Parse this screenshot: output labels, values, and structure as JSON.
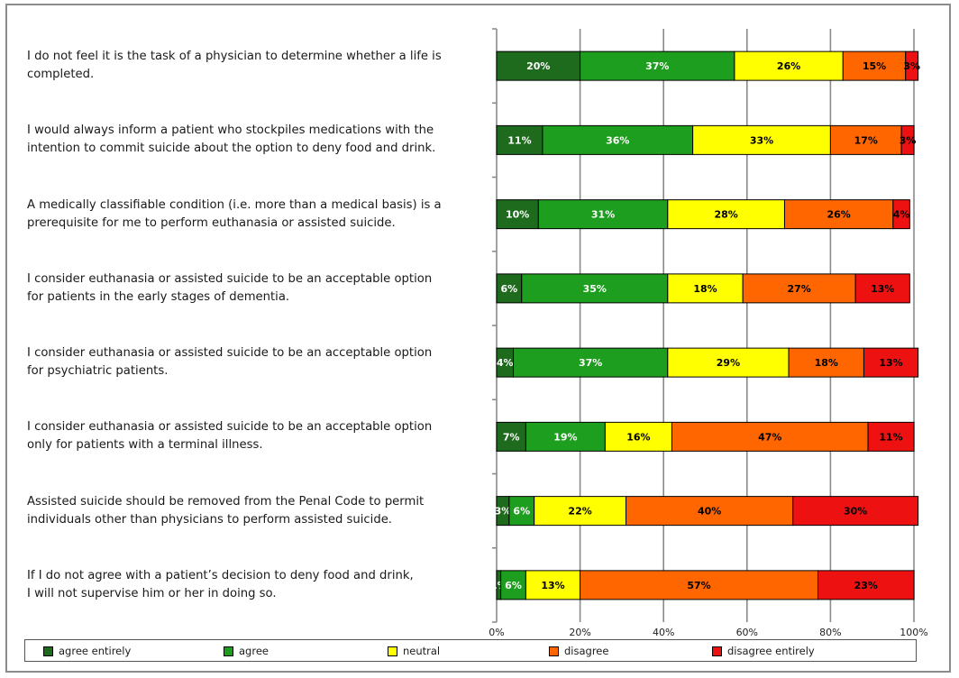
{
  "chart_data": {
    "type": "bar",
    "orientation": "horizontal",
    "stacked": true,
    "title": "",
    "xlabel": "",
    "ylabel": "",
    "xlim": [
      0,
      100
    ],
    "xticks": [
      "0%",
      "20%",
      "40%",
      "60%",
      "80%",
      "100%"
    ],
    "grid": true,
    "legend_position": "bottom",
    "categories": [
      "I do not feel it is the task of a physician to determine whether a life is\ncompleted.",
      "I would always inform a patient who stockpiles medications with the\nintention to commit suicide about the option to deny food and drink.",
      "A medically classifiable condition (i.e. more than a medical basis) is a\nprerequisite for me to perform euthanasia or assisted suicide.",
      "I consider euthanasia or assisted suicide to be an acceptable option\nfor patients in the early stages of dementia.",
      "I consider euthanasia or assisted suicide to be an acceptable option\nfor psychiatric patients.",
      "I consider euthanasia or assisted suicide to be an acceptable option\nonly for patients with a terminal illness.",
      "Assisted suicide should be removed from the Penal Code to permit\nindividuals other than physicians to perform assisted suicide.",
      "If I do not agree with a patient’s decision to deny food and drink,\nI will not supervise him or her in doing so."
    ],
    "series": [
      {
        "name": "agree entirely",
        "color": "#1e6b1e",
        "values": [
          20,
          11,
          10,
          6,
          4,
          7,
          3,
          1
        ]
      },
      {
        "name": "agree",
        "color": "#1e9e1e",
        "values": [
          37,
          36,
          31,
          35,
          37,
          19,
          6,
          6
        ]
      },
      {
        "name": "neutral",
        "color": "#ffff00",
        "values": [
          26,
          33,
          28,
          18,
          29,
          16,
          22,
          13
        ]
      },
      {
        "name": "disagree",
        "color": "#ff6600",
        "values": [
          15,
          17,
          26,
          27,
          18,
          47,
          40,
          57
        ]
      },
      {
        "name": "disagree entirely",
        "color": "#ee1111",
        "values": [
          3,
          3,
          4,
          13,
          13,
          11,
          30,
          23
        ]
      }
    ],
    "label_colors": {
      "agree entirely": "#ffffff",
      "agree": "#ffffff",
      "neutral": "#000000",
      "disagree": "#000000",
      "disagree entirely": "#000000"
    }
  }
}
